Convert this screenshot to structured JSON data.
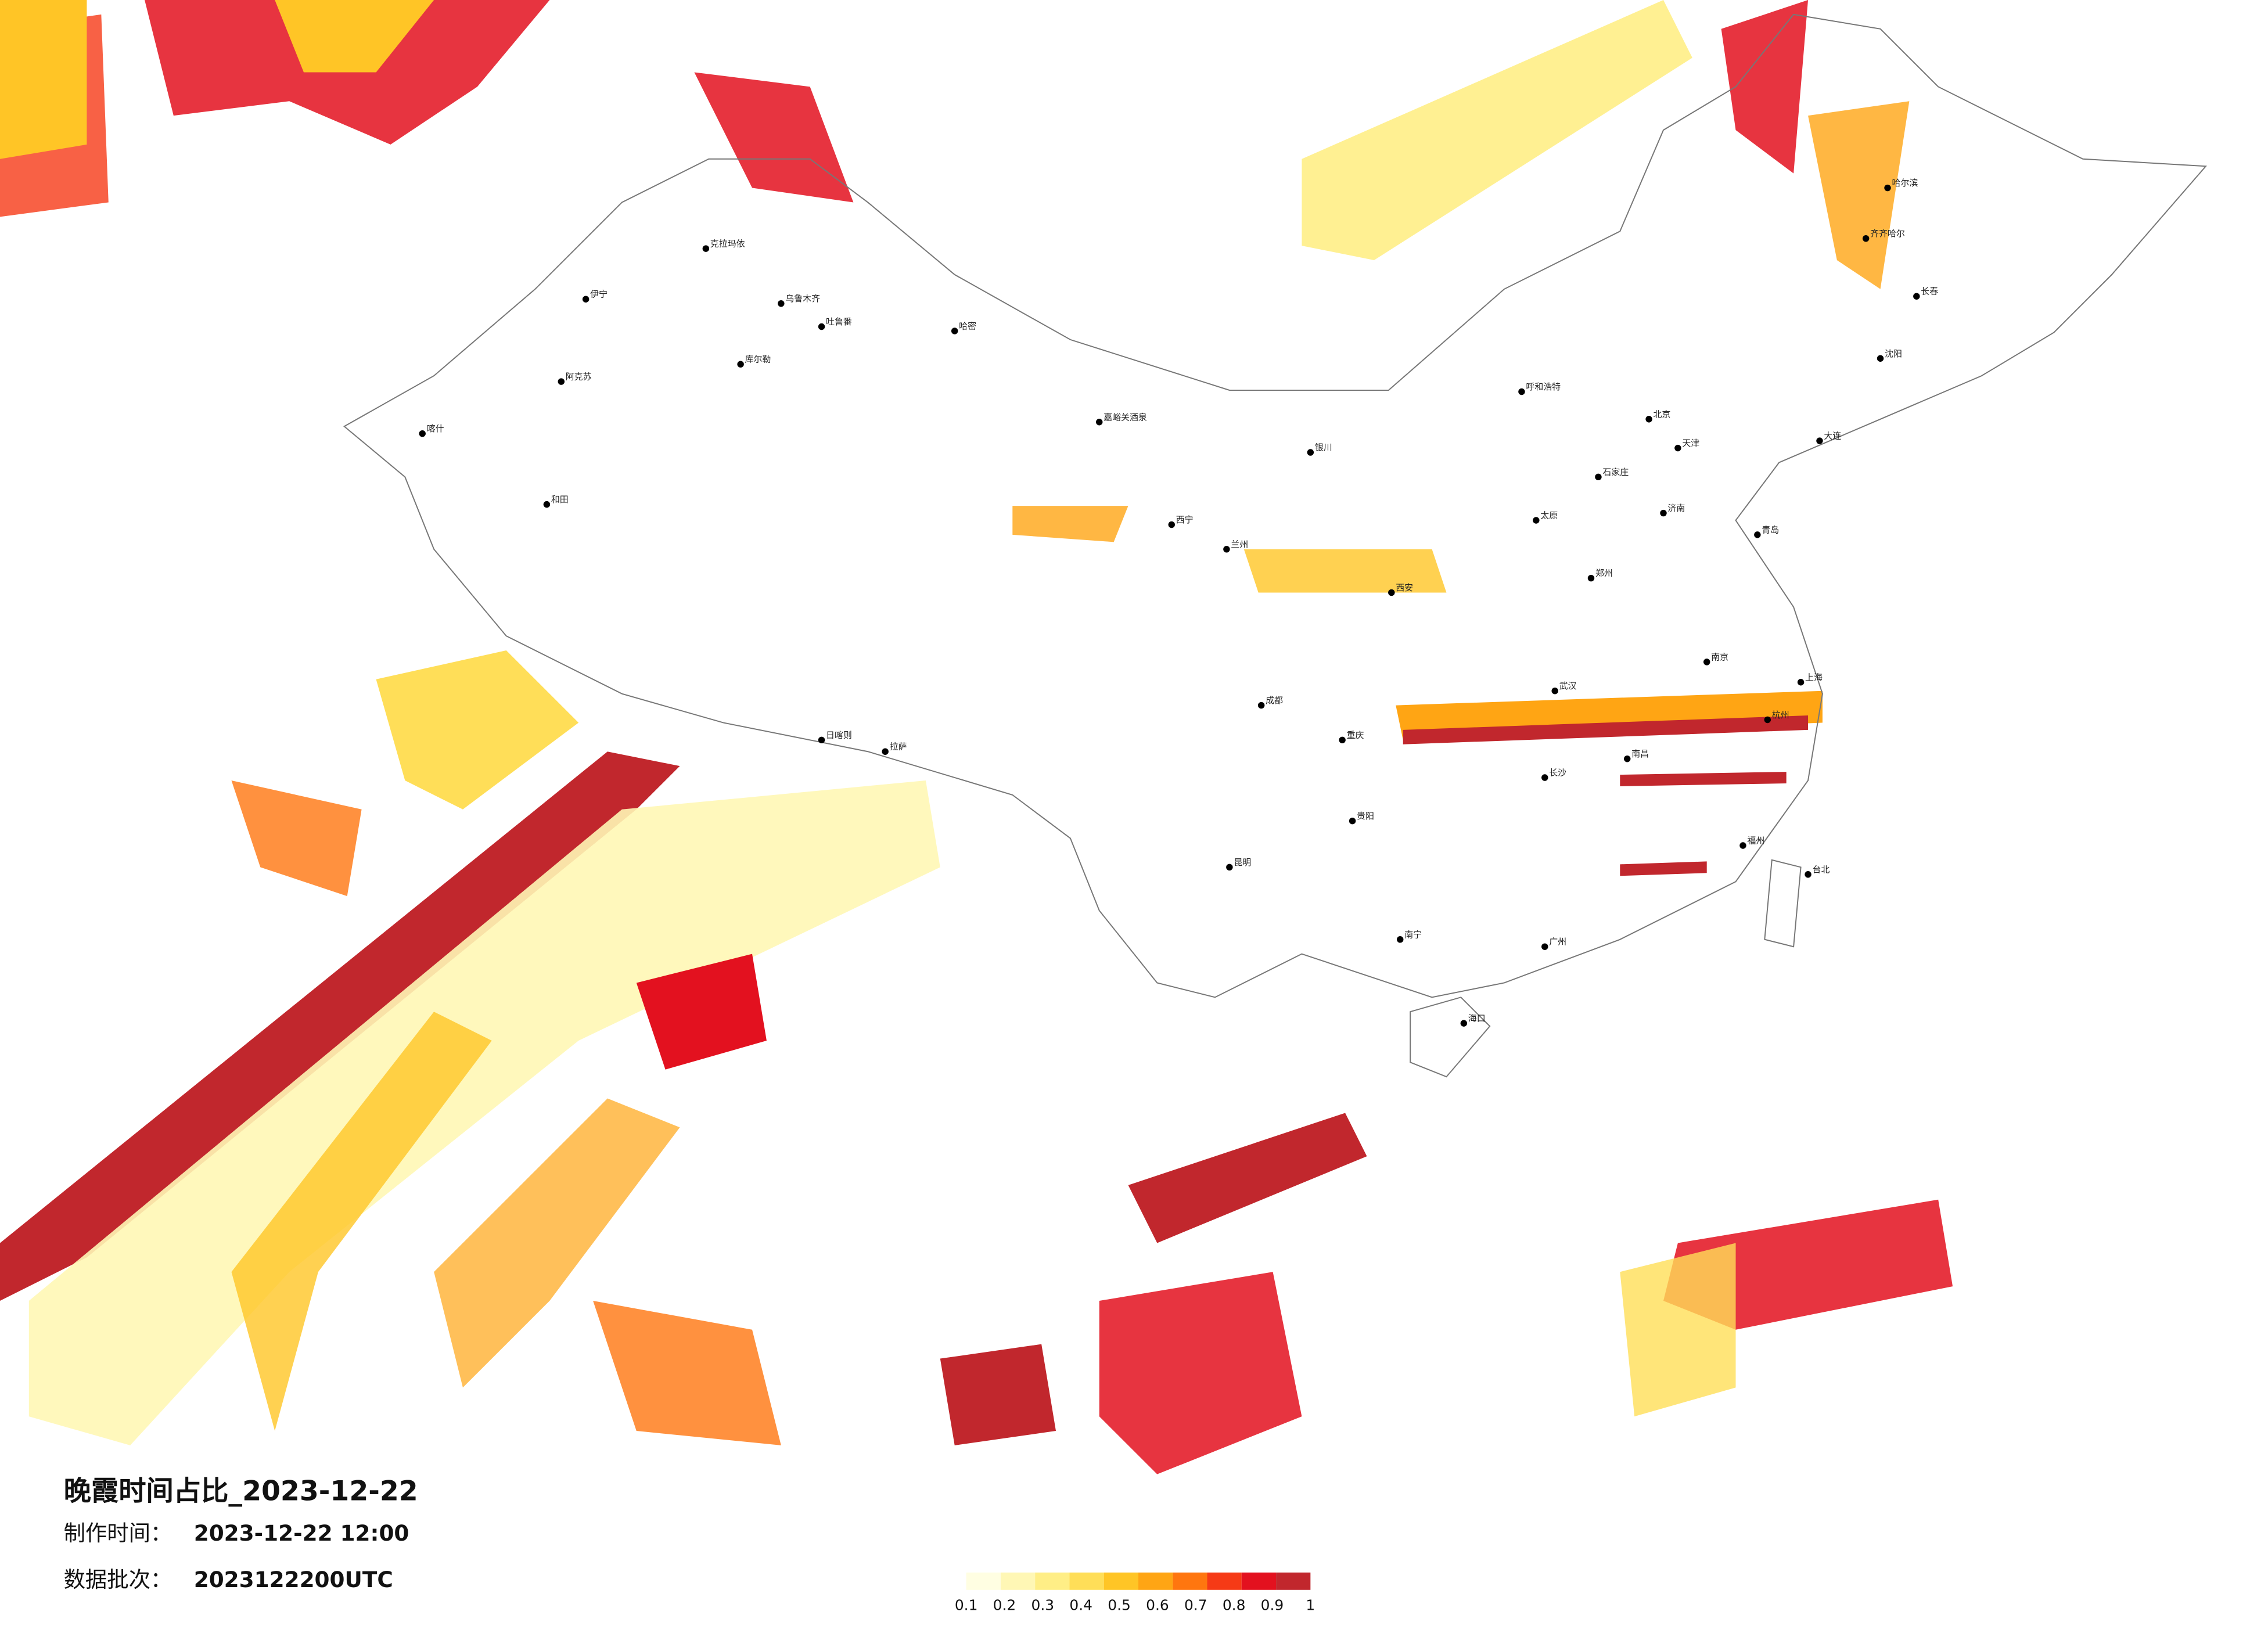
{
  "title": "晚霞时间占比_2023-12-22",
  "info": [
    {
      "label": "制作时间：",
      "value": "2023-12-22 12:00"
    },
    {
      "label": "数据批次：",
      "value": "2023122200UTC"
    }
  ],
  "legend": {
    "ticks": [
      0.1,
      0.2,
      0.3,
      0.4,
      0.5,
      0.6,
      0.7,
      0.8,
      0.9,
      1
    ],
    "colors": [
      "#fffee2",
      "#fff7b5",
      "#ffee86",
      "#ffde58",
      "#ffc526",
      "#ffa514",
      "#ff760f",
      "#f63a16",
      "#e3111f",
      "#c1272d"
    ]
  },
  "cities": [
    "克拉玛依",
    "乌鲁木齐",
    "吐鲁番",
    "伊宁",
    "库尔勒",
    "阿克苏",
    "喀什",
    "和田",
    "哈密",
    "嘉峪关酒泉",
    "西宁",
    "拉萨",
    "日喀则",
    "兰州",
    "银川",
    "呼和浩特",
    "北京",
    "天津",
    "石家庄",
    "太原",
    "西安",
    "郑州",
    "济南",
    "青岛",
    "南京",
    "上海",
    "杭州",
    "武汉",
    "长沙",
    "南昌",
    "福州",
    "广州",
    "南宁",
    "贵阳",
    "昆明",
    "成都",
    "重庆",
    "海口",
    "台北",
    "哈尔滨",
    "长春",
    "沈阳",
    "大连",
    "齐齐哈尔"
  ]
}
